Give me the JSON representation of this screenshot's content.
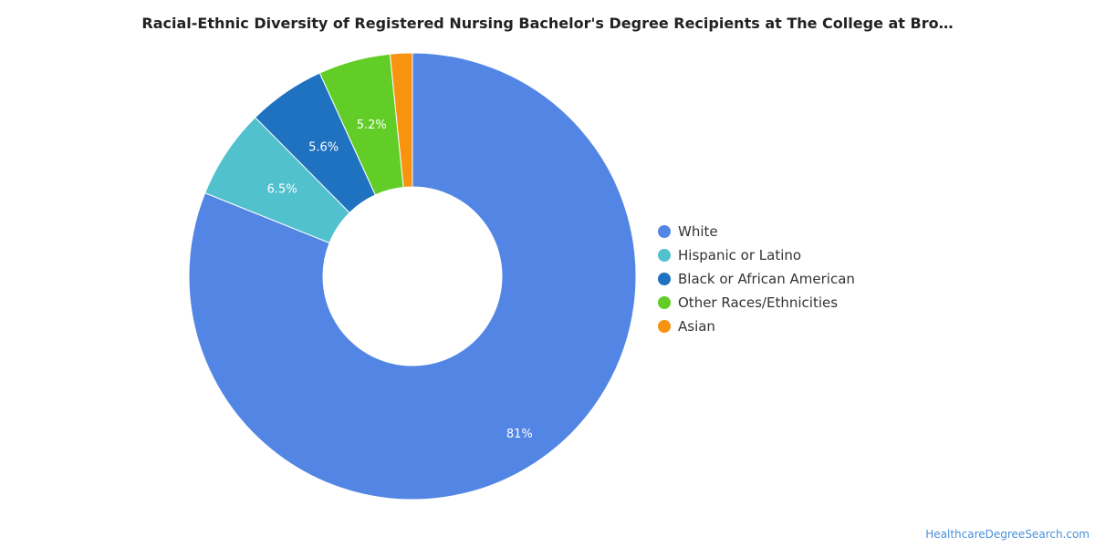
{
  "chart_data": {
    "type": "pie",
    "donut": true,
    "title": "Racial-Ethnic Diversity of Registered Nursing Bachelor's Degree Recipients at The College at Bro…",
    "slices": [
      {
        "label": "White",
        "value": 81.0,
        "data_label": "81%",
        "color": "#5386e4"
      },
      {
        "label": "Hispanic or Latino",
        "value": 6.5,
        "data_label": "6.5%",
        "color": "#51c1ce"
      },
      {
        "label": "Black or African American",
        "value": 5.6,
        "data_label": "5.6%",
        "color": "#1f72bf"
      },
      {
        "label": "Other Races/Ethnicities",
        "value": 5.2,
        "data_label": "5.2%",
        "color": "#63cd28"
      },
      {
        "label": "Asian",
        "value": 1.6,
        "data_label": "",
        "color": "#f7930e"
      }
    ],
    "legend_position": "right"
  },
  "footer": {
    "source": "HealthcareDegreeSearch.com"
  }
}
